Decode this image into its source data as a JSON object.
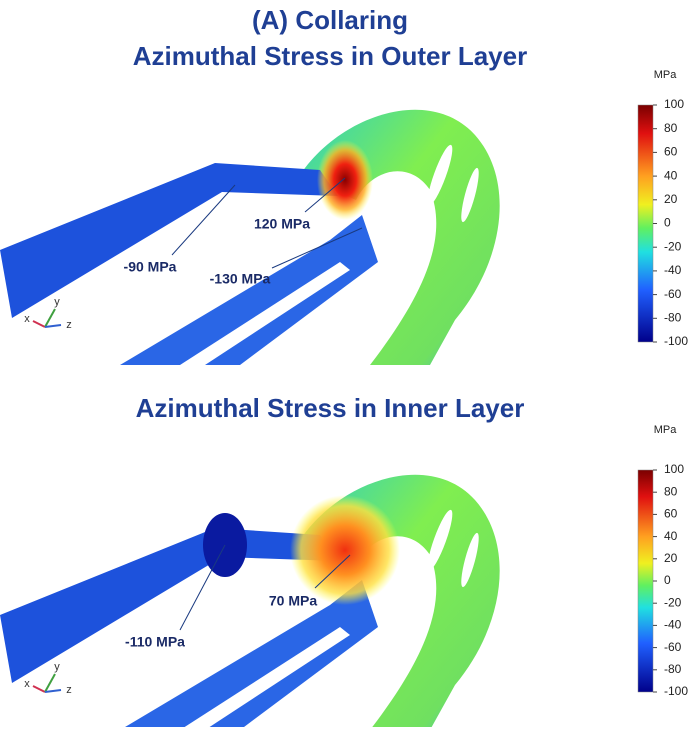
{
  "panels": [
    {
      "title": [
        "(A)  Collaring",
        "Azimuthal Stress in Outer Layer"
      ],
      "annotations": [
        "120 MPa",
        "-90 MPa",
        "-130 MPa"
      ],
      "axes": [
        "x",
        "y",
        "z"
      ],
      "colorbar": {
        "unit": "MPa",
        "ticks": [
          100,
          80,
          60,
          40,
          20,
          0,
          -20,
          -40,
          -60,
          -80,
          -100
        ]
      }
    },
    {
      "title": [
        "Azimuthal Stress in Inner Layer"
      ],
      "annotations": [
        "70 MPa",
        "-110 MPa"
      ],
      "axes": [
        "x",
        "y",
        "z"
      ],
      "colorbar": {
        "unit": "MPa",
        "ticks": [
          100,
          80,
          60,
          40,
          20,
          0,
          -20,
          -40,
          -60,
          -80,
          -100
        ]
      }
    }
  ]
}
